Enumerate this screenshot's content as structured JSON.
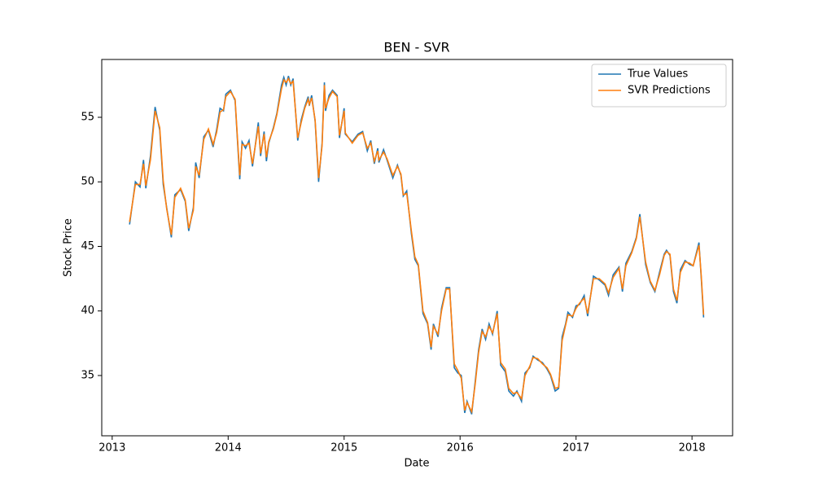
{
  "chart_data": {
    "type": "line",
    "title": "BEN - SVR",
    "xlabel": "Date",
    "ylabel": "Stock Price",
    "legend": "upper right",
    "x": [
      2013.15,
      2013.2,
      2013.24,
      2013.27,
      2013.29,
      2013.33,
      2013.37,
      2013.41,
      2013.44,
      2013.47,
      2013.51,
      2013.54,
      2013.59,
      2013.63,
      2013.66,
      2013.7,
      2013.72,
      2013.75,
      2013.79,
      2013.83,
      2013.87,
      2013.9,
      2013.93,
      2013.96,
      2013.98,
      2014.02,
      2014.06,
      2014.1,
      2014.12,
      2014.15,
      2014.18,
      2014.21,
      2014.26,
      2014.28,
      2014.31,
      2014.33,
      2014.35,
      2014.39,
      2014.42,
      2014.46,
      2014.48,
      2014.5,
      2014.52,
      2014.54,
      2014.56,
      2014.6,
      2014.63,
      2014.66,
      2014.69,
      2014.7,
      2014.72,
      2014.75,
      2014.78,
      2014.81,
      2014.83,
      2014.84,
      2014.87,
      2014.9,
      2014.94,
      2014.96,
      2015.0,
      2015.01,
      2015.07,
      2015.12,
      2015.16,
      2015.2,
      2015.23,
      2015.26,
      2015.29,
      2015.3,
      2015.34,
      2015.37,
      2015.42,
      2015.46,
      2015.49,
      2015.51,
      2015.54,
      2015.58,
      2015.61,
      2015.64,
      2015.68,
      2015.72,
      2015.75,
      2015.77,
      2015.81,
      2015.84,
      2015.88,
      2015.91,
      2015.95,
      2015.98,
      2016.01,
      2016.04,
      2016.06,
      2016.1,
      2016.13,
      2016.16,
      2016.19,
      2016.22,
      2016.25,
      2016.28,
      2016.32,
      2016.35,
      2016.39,
      2016.42,
      2016.46,
      2016.49,
      2016.53,
      2016.56,
      2016.6,
      2016.63,
      2016.67,
      2016.71,
      2016.75,
      2016.78,
      2016.82,
      2016.85,
      2016.88,
      2016.91,
      2016.93,
      2016.97,
      2017.0,
      2017.03,
      2017.07,
      2017.1,
      2017.15,
      2017.2,
      2017.25,
      2017.28,
      2017.32,
      2017.37,
      2017.4,
      2017.43,
      2017.48,
      2017.52,
      2017.55,
      2017.6,
      2017.64,
      2017.68,
      2017.72,
      2017.76,
      2017.78,
      2017.81,
      2017.84,
      2017.87,
      2017.9,
      2017.94,
      2017.98,
      2018.01,
      2018.06,
      2018.08,
      2018.1
    ],
    "series": [
      {
        "name": "True Values",
        "color": "#1f77b4",
        "values": [
          46.7,
          50.0,
          49.6,
          51.7,
          49.5,
          52.0,
          55.8,
          54.0,
          49.8,
          48.0,
          45.7,
          49.0,
          49.4,
          48.5,
          46.2,
          48.0,
          51.5,
          50.3,
          53.5,
          54.0,
          52.7,
          54.0,
          55.7,
          55.5,
          56.8,
          57.1,
          56.3,
          50.2,
          53.1,
          52.6,
          53.2,
          51.2,
          54.6,
          52.0,
          53.9,
          51.6,
          53.0,
          54.2,
          55.3,
          57.5,
          58.1,
          57.5,
          58.2,
          57.5,
          58.0,
          53.2,
          54.8,
          55.8,
          56.6,
          55.9,
          56.7,
          54.7,
          50.0,
          53.0,
          57.7,
          55.5,
          56.7,
          57.1,
          56.7,
          53.4,
          55.7,
          53.7,
          53.1,
          53.7,
          53.9,
          52.4,
          53.2,
          51.4,
          52.6,
          51.5,
          52.5,
          51.7,
          50.3,
          51.3,
          50.5,
          48.9,
          49.3,
          46.0,
          44.0,
          43.5,
          39.8,
          39.0,
          37.0,
          39.0,
          38.0,
          40.2,
          41.8,
          41.8,
          35.6,
          35.2,
          35.0,
          32.1,
          33.0,
          32.0,
          34.5,
          37.0,
          38.6,
          37.8,
          39.0,
          38.2,
          40.0,
          35.8,
          35.3,
          33.8,
          33.4,
          33.8,
          33.0,
          35.2,
          35.6,
          36.5,
          36.2,
          36.0,
          35.5,
          35.0,
          33.8,
          34.0,
          38.0,
          39.0,
          39.9,
          39.5,
          40.4,
          40.5,
          41.2,
          39.6,
          42.7,
          42.4,
          42.0,
          41.2,
          42.8,
          43.4,
          41.5,
          43.7,
          44.6,
          45.7,
          47.5,
          43.6,
          42.2,
          41.5,
          43.0,
          44.4,
          44.7,
          44.3,
          41.5,
          40.6,
          43.2,
          43.9,
          43.6,
          43.5,
          45.3,
          42.5,
          39.5
        ]
      },
      {
        "name": "SVR Predictions",
        "color": "#ff7f0e",
        "values": [
          46.9,
          49.8,
          49.8,
          51.4,
          49.7,
          51.7,
          55.5,
          54.2,
          50.1,
          47.9,
          45.9,
          48.8,
          49.5,
          48.6,
          46.4,
          47.8,
          51.2,
          50.5,
          53.3,
          54.1,
          52.9,
          53.8,
          55.4,
          55.6,
          56.6,
          57.0,
          56.4,
          50.5,
          52.9,
          52.8,
          53.0,
          51.4,
          54.3,
          52.2,
          53.7,
          51.9,
          53.1,
          54.1,
          55.2,
          57.2,
          57.9,
          57.7,
          58.0,
          57.6,
          57.8,
          53.4,
          54.6,
          55.7,
          56.4,
          56.0,
          56.5,
          54.8,
          50.3,
          52.8,
          57.5,
          55.7,
          56.5,
          57.0,
          56.6,
          53.6,
          55.5,
          53.8,
          53.0,
          53.6,
          53.8,
          52.6,
          53.0,
          51.6,
          52.4,
          51.7,
          52.3,
          51.8,
          50.5,
          51.2,
          50.6,
          49.0,
          49.1,
          46.2,
          44.2,
          43.6,
          40.0,
          39.1,
          37.2,
          38.8,
          38.2,
          40.0,
          41.7,
          41.7,
          35.9,
          35.4,
          34.8,
          32.3,
          32.9,
          32.2,
          34.3,
          36.8,
          38.4,
          38.0,
          38.8,
          38.3,
          39.8,
          36.0,
          35.5,
          34.0,
          33.6,
          33.7,
          33.2,
          35.0,
          35.7,
          36.4,
          36.3,
          35.9,
          35.6,
          35.1,
          34.0,
          34.1,
          37.7,
          38.9,
          39.7,
          39.6,
          40.2,
          40.6,
          41.0,
          39.8,
          42.5,
          42.5,
          42.1,
          41.4,
          42.6,
          43.3,
          41.7,
          43.5,
          44.5,
          45.6,
          47.3,
          43.8,
          42.3,
          41.6,
          42.8,
          44.3,
          44.6,
          44.4,
          41.7,
          40.8,
          43.0,
          43.8,
          43.7,
          43.5,
          45.1,
          42.7,
          39.7
        ]
      }
    ],
    "xlim": [
      2012.91,
      2018.35
    ],
    "xticks": [
      2013,
      2014,
      2015,
      2016,
      2017,
      2018
    ],
    "ylim": [
      30.33,
      59.48
    ],
    "yticks": [
      35,
      40,
      45,
      50,
      55
    ]
  }
}
